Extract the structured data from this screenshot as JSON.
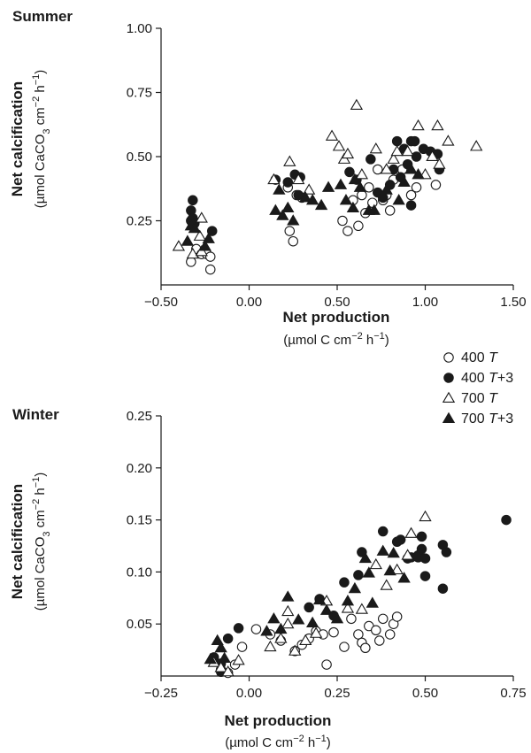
{
  "chart_data": [
    {
      "type": "scatter",
      "title": "Summer",
      "xlabel": "Net production",
      "xunit": "(µmol C cm⁻² h⁻¹)",
      "ylabel": "Net calcification",
      "yunit": "(µmol CaCO₃ cm⁻² h⁻¹)",
      "xlim": [
        -0.5,
        1.5
      ],
      "ylim": [
        0,
        1.0
      ],
      "xticks": [
        -0.5,
        0,
        0.5,
        1.0,
        1.5
      ],
      "xtick_labels": [
        "−0.50",
        "0.00",
        "0.50",
        "1.00",
        "1.50"
      ],
      "yticks": [
        0.25,
        0.5,
        0.75,
        1.0
      ],
      "ytick_labels": [
        "0.25",
        "0.50",
        "0.75",
        "1.00"
      ],
      "grid": false,
      "series": [
        {
          "name": "400 T",
          "marker": "circle-open",
          "points": [
            [
              -0.33,
              0.09
            ],
            [
              -0.3,
              0.14
            ],
            [
              -0.27,
              0.12
            ],
            [
              -0.24,
              0.12
            ],
            [
              -0.22,
              0.06
            ],
            [
              -0.22,
              0.11
            ],
            [
              0.23,
              0.21
            ],
            [
              0.25,
              0.17
            ],
            [
              0.22,
              0.38
            ],
            [
              0.27,
              0.35
            ],
            [
              0.3,
              0.34
            ],
            [
              0.53,
              0.25
            ],
            [
              0.56,
              0.21
            ],
            [
              0.59,
              0.33
            ],
            [
              0.62,
              0.23
            ],
            [
              0.64,
              0.35
            ],
            [
              0.66,
              0.28
            ],
            [
              0.68,
              0.38
            ],
            [
              0.7,
              0.32
            ],
            [
              0.73,
              0.45
            ],
            [
              0.76,
              0.33
            ],
            [
              0.78,
              0.35
            ],
            [
              0.8,
              0.29
            ],
            [
              0.82,
              0.41
            ],
            [
              0.87,
              0.45
            ],
            [
              0.92,
              0.35
            ],
            [
              0.95,
              0.38
            ],
            [
              1.06,
              0.39
            ]
          ]
        },
        {
          "name": "400 T+3",
          "marker": "circle-filled",
          "points": [
            [
              -0.32,
              0.33
            ],
            [
              -0.33,
              0.29
            ],
            [
              -0.32,
              0.26
            ],
            [
              -0.33,
              0.25
            ],
            [
              -0.31,
              0.24
            ],
            [
              -0.21,
              0.21
            ],
            [
              0.15,
              0.41
            ],
            [
              0.22,
              0.4
            ],
            [
              0.26,
              0.43
            ],
            [
              0.29,
              0.42
            ],
            [
              0.28,
              0.35
            ],
            [
              0.57,
              0.44
            ],
            [
              0.61,
              0.41
            ],
            [
              0.69,
              0.49
            ],
            [
              0.73,
              0.36
            ],
            [
              0.76,
              0.34
            ],
            [
              0.8,
              0.39
            ],
            [
              0.82,
              0.45
            ],
            [
              0.84,
              0.56
            ],
            [
              0.88,
              0.53
            ],
            [
              0.9,
              0.47
            ],
            [
              0.92,
              0.56
            ],
            [
              0.94,
              0.56
            ],
            [
              0.95,
              0.5
            ],
            [
              0.99,
              0.53
            ],
            [
              1.03,
              0.52
            ],
            [
              1.07,
              0.51
            ],
            [
              1.08,
              0.45
            ],
            [
              0.92,
              0.31
            ],
            [
              0.86,
              0.42
            ]
          ]
        },
        {
          "name": "700 T",
          "marker": "triangle-open",
          "points": [
            [
              -0.4,
              0.15
            ],
            [
              -0.32,
              0.12
            ],
            [
              -0.27,
              0.26
            ],
            [
              -0.28,
              0.19
            ],
            [
              -0.27,
              0.13
            ],
            [
              0.14,
              0.41
            ],
            [
              0.23,
              0.48
            ],
            [
              0.28,
              0.41
            ],
            [
              0.34,
              0.37
            ],
            [
              0.47,
              0.58
            ],
            [
              0.51,
              0.54
            ],
            [
              0.54,
              0.49
            ],
            [
              0.56,
              0.51
            ],
            [
              0.61,
              0.7
            ],
            [
              0.64,
              0.43
            ],
            [
              0.72,
              0.53
            ],
            [
              0.78,
              0.45
            ],
            [
              0.82,
              0.49
            ],
            [
              0.84,
              0.52
            ],
            [
              0.9,
              0.52
            ],
            [
              0.96,
              0.62
            ],
            [
              1.0,
              0.43
            ],
            [
              1.04,
              0.5
            ],
            [
              1.07,
              0.62
            ],
            [
              1.08,
              0.47
            ],
            [
              1.13,
              0.56
            ],
            [
              1.29,
              0.54
            ]
          ]
        },
        {
          "name": "700 T+3",
          "marker": "triangle-filled",
          "points": [
            [
              -0.35,
              0.17
            ],
            [
              -0.33,
              0.23
            ],
            [
              -0.31,
              0.22
            ],
            [
              -0.25,
              0.15
            ],
            [
              -0.23,
              0.18
            ],
            [
              0.15,
              0.29
            ],
            [
              0.17,
              0.37
            ],
            [
              0.19,
              0.27
            ],
            [
              0.22,
              0.3
            ],
            [
              0.25,
              0.25
            ],
            [
              0.32,
              0.34
            ],
            [
              0.36,
              0.33
            ],
            [
              0.41,
              0.31
            ],
            [
              0.45,
              0.38
            ],
            [
              0.52,
              0.39
            ],
            [
              0.55,
              0.33
            ],
            [
              0.59,
              0.3
            ],
            [
              0.6,
              0.41
            ],
            [
              0.63,
              0.38
            ],
            [
              0.68,
              0.29
            ],
            [
              0.71,
              0.29
            ],
            [
              0.78,
              0.37
            ],
            [
              0.85,
              0.33
            ],
            [
              0.88,
              0.4
            ],
            [
              0.92,
              0.45
            ],
            [
              0.96,
              0.43
            ]
          ]
        }
      ]
    },
    {
      "type": "scatter",
      "title": "Winter",
      "xlabel": "Net production",
      "xunit": "(µmol C cm⁻² h⁻¹)",
      "ylabel": "Net calcification",
      "yunit": "(µmol CaCO₃ cm⁻² h⁻¹)",
      "xlim": [
        -0.25,
        0.75
      ],
      "ylim": [
        0,
        0.25
      ],
      "xticks": [
        -0.25,
        0,
        0.25,
        0.5,
        0.75
      ],
      "xtick_labels": [
        "−0.25",
        "0.00",
        "0.25",
        "0.50",
        "0.75"
      ],
      "yticks": [
        0.05,
        0.1,
        0.15,
        0.2,
        0.25
      ],
      "ytick_labels": [
        "0.05",
        "0.10",
        "0.15",
        "0.20",
        "0.25"
      ],
      "grid": false,
      "series": [
        {
          "name": "400 T",
          "marker": "circle-open",
          "points": [
            [
              -0.08,
              0.006
            ],
            [
              -0.06,
              0.003
            ],
            [
              -0.04,
              0.011
            ],
            [
              -0.02,
              0.028
            ],
            [
              0.02,
              0.045
            ],
            [
              0.06,
              0.04
            ],
            [
              0.09,
              0.034
            ],
            [
              0.13,
              0.024
            ],
            [
              0.15,
              0.03
            ],
            [
              0.17,
              0.036
            ],
            [
              0.19,
              0.043
            ],
            [
              0.21,
              0.04
            ],
            [
              0.22,
              0.011
            ],
            [
              0.24,
              0.042
            ],
            [
              0.27,
              0.028
            ],
            [
              0.29,
              0.055
            ],
            [
              0.31,
              0.04
            ],
            [
              0.32,
              0.032
            ],
            [
              0.33,
              0.027
            ],
            [
              0.34,
              0.048
            ],
            [
              0.36,
              0.044
            ],
            [
              0.37,
              0.034
            ],
            [
              0.38,
              0.055
            ],
            [
              0.4,
              0.04
            ],
            [
              0.41,
              0.05
            ],
            [
              0.42,
              0.057
            ]
          ]
        },
        {
          "name": "400 T+3",
          "marker": "circle-filled",
          "points": [
            [
              -0.1,
              0.018
            ],
            [
              -0.08,
              0.012
            ],
            [
              -0.06,
              0.036
            ],
            [
              -0.03,
              0.046
            ],
            [
              -0.08,
              0.004
            ],
            [
              0.17,
              0.066
            ],
            [
              0.2,
              0.074
            ],
            [
              0.24,
              0.058
            ],
            [
              0.27,
              0.09
            ],
            [
              0.31,
              0.097
            ],
            [
              0.32,
              0.119
            ],
            [
              0.38,
              0.139
            ],
            [
              0.42,
              0.129
            ],
            [
              0.43,
              0.131
            ],
            [
              0.45,
              0.113
            ],
            [
              0.46,
              0.114
            ],
            [
              0.48,
              0.116
            ],
            [
              0.48,
              0.114
            ],
            [
              0.49,
              0.122
            ],
            [
              0.5,
              0.113
            ],
            [
              0.49,
              0.134
            ],
            [
              0.5,
              0.096
            ],
            [
              0.55,
              0.084
            ],
            [
              0.55,
              0.126
            ],
            [
              0.56,
              0.119
            ],
            [
              0.73,
              0.15
            ]
          ]
        },
        {
          "name": "700 T",
          "marker": "triangle-open",
          "points": [
            [
              -0.1,
              0.013
            ],
            [
              -0.08,
              0.008
            ],
            [
              -0.06,
              0.004
            ],
            [
              -0.03,
              0.015
            ],
            [
              0.06,
              0.028
            ],
            [
              0.09,
              0.036
            ],
            [
              0.11,
              0.05
            ],
            [
              0.13,
              0.024
            ],
            [
              0.16,
              0.034
            ],
            [
              0.19,
              0.041
            ],
            [
              0.22,
              0.072
            ],
            [
              0.28,
              0.065
            ],
            [
              0.32,
              0.064
            ],
            [
              0.36,
              0.107
            ],
            [
              0.39,
              0.087
            ],
            [
              0.42,
              0.102
            ],
            [
              0.45,
              0.116
            ],
            [
              0.46,
              0.137
            ],
            [
              0.5,
              0.153
            ],
            [
              0.11,
              0.062
            ]
          ]
        },
        {
          "name": "700 T+3",
          "marker": "triangle-filled",
          "points": [
            [
              -0.11,
              0.016
            ],
            [
              -0.09,
              0.034
            ],
            [
              -0.08,
              0.027
            ],
            [
              -0.07,
              0.017
            ],
            [
              0.05,
              0.043
            ],
            [
              0.07,
              0.055
            ],
            [
              0.09,
              0.045
            ],
            [
              0.11,
              0.076
            ],
            [
              0.14,
              0.054
            ],
            [
              0.18,
              0.051
            ],
            [
              0.2,
              0.073
            ],
            [
              0.22,
              0.063
            ],
            [
              0.25,
              0.055
            ],
            [
              0.28,
              0.072
            ],
            [
              0.3,
              0.084
            ],
            [
              0.33,
              0.113
            ],
            [
              0.34,
              0.099
            ],
            [
              0.35,
              0.07
            ],
            [
              0.38,
              0.12
            ],
            [
              0.4,
              0.101
            ],
            [
              0.41,
              0.118
            ],
            [
              0.44,
              0.094
            ]
          ]
        }
      ]
    }
  ],
  "legend": [
    {
      "series": "400 T",
      "marker": "circle-open",
      "prefix": "400 ",
      "var": "T",
      "suffix": ""
    },
    {
      "series": "400 T+3",
      "marker": "circle-filled",
      "prefix": "400 ",
      "var": "T",
      "suffix": "+3"
    },
    {
      "series": "700 T",
      "marker": "triangle-open",
      "prefix": "700 ",
      "var": "T",
      "suffix": ""
    },
    {
      "series": "700 T+3",
      "marker": "triangle-filled",
      "prefix": "700 ",
      "var": "T",
      "suffix": "+3"
    }
  ]
}
